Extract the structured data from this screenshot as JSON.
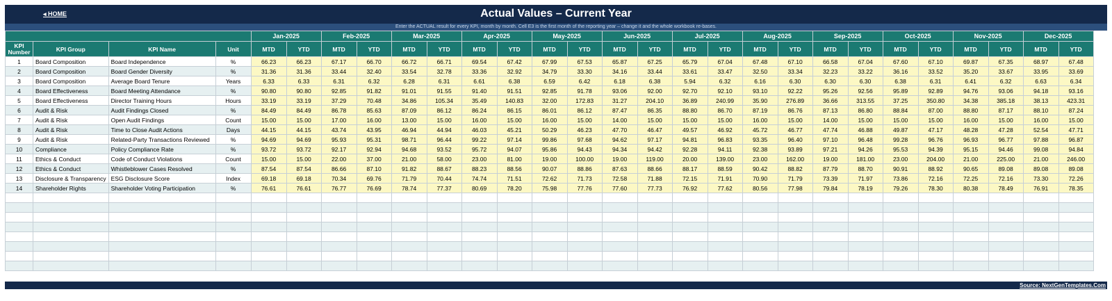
{
  "header": {
    "home_label": "◂ HOME",
    "title": "Actual Values  –  Current Year",
    "subtitle": "Enter the ACTUAL result for every KPI, month by month. Cell E3 is the first month of the reporting year – change it and the whole workbook re-bases."
  },
  "columns": {
    "kpi_number": "KPI Number",
    "kpi_group": "KPI Group",
    "kpi_name": "KPI Name",
    "unit": "Unit",
    "mtd": "MTD",
    "ytd": "YTD"
  },
  "months": [
    "Jan-2025",
    "Feb-2025",
    "Mar-2025",
    "Apr-2025",
    "May-2025",
    "Jun-2025",
    "Jul-2025",
    "Aug-2025",
    "Sep-2025",
    "Oct-2025",
    "Nov-2025",
    "Dec-2025"
  ],
  "rows": [
    {
      "num": "1",
      "group": "Board Composition",
      "name": "Board Independence",
      "unit": "%",
      "values": [
        "66.23",
        "66.23",
        "67.17",
        "66.70",
        "66.72",
        "66.71",
        "69.54",
        "67.42",
        "67.99",
        "67.53",
        "65.87",
        "67.25",
        "65.79",
        "67.04",
        "67.48",
        "67.10",
        "66.58",
        "67.04",
        "67.60",
        "67.10",
        "69.87",
        "67.35",
        "68.97",
        "67.48"
      ]
    },
    {
      "num": "2",
      "group": "Board Composition",
      "name": "Board Gender Diversity",
      "unit": "%",
      "values": [
        "31.36",
        "31.36",
        "33.44",
        "32.40",
        "33.54",
        "32.78",
        "33.36",
        "32.92",
        "34.79",
        "33.30",
        "34.16",
        "33.44",
        "33.61",
        "33.47",
        "32.50",
        "33.34",
        "32.23",
        "33.22",
        "36.16",
        "33.52",
        "35.20",
        "33.67",
        "33.95",
        "33.69"
      ]
    },
    {
      "num": "3",
      "group": "Board Composition",
      "name": "Average Board Tenure",
      "unit": "Years",
      "values": [
        "6.33",
        "6.33",
        "6.31",
        "6.32",
        "6.28",
        "6.31",
        "6.61",
        "6.38",
        "6.59",
        "6.42",
        "6.18",
        "6.38",
        "5.94",
        "6.32",
        "6.16",
        "6.30",
        "6.30",
        "6.30",
        "6.38",
        "6.31",
        "6.41",
        "6.32",
        "6.63",
        "6.34"
      ]
    },
    {
      "num": "4",
      "group": "Board Effectiveness",
      "name": "Board Meeting Attendance",
      "unit": "%",
      "values": [
        "90.80",
        "90.80",
        "92.85",
        "91.82",
        "91.01",
        "91.55",
        "91.40",
        "91.51",
        "92.85",
        "91.78",
        "93.06",
        "92.00",
        "92.70",
        "92.10",
        "93.10",
        "92.22",
        "95.26",
        "92.56",
        "95.89",
        "92.89",
        "94.76",
        "93.06",
        "94.18",
        "93.16"
      ]
    },
    {
      "num": "5",
      "group": "Board Effectiveness",
      "name": "Director Training Hours",
      "unit": "Hours",
      "values": [
        "33.19",
        "33.19",
        "37.29",
        "70.48",
        "34.86",
        "105.34",
        "35.49",
        "140.83",
        "32.00",
        "172.83",
        "31.27",
        "204.10",
        "36.89",
        "240.99",
        "35.90",
        "276.89",
        "36.66",
        "313.55",
        "37.25",
        "350.80",
        "34.38",
        "385.18",
        "38.13",
        "423.31"
      ]
    },
    {
      "num": "6",
      "group": "Audit & Risk",
      "name": "Audit Findings Closed",
      "unit": "%",
      "values": [
        "84.49",
        "84.49",
        "86.78",
        "85.63",
        "87.09",
        "86.12",
        "86.24",
        "86.15",
        "86.01",
        "86.12",
        "87.47",
        "86.35",
        "88.80",
        "86.70",
        "87.19",
        "86.76",
        "87.13",
        "86.80",
        "88.84",
        "87.00",
        "88.80",
        "87.17",
        "88.10",
        "87.24"
      ]
    },
    {
      "num": "7",
      "group": "Audit & Risk",
      "name": "Open Audit Findings",
      "unit": "Count",
      "values": [
        "15.00",
        "15.00",
        "17.00",
        "16.00",
        "13.00",
        "15.00",
        "16.00",
        "15.00",
        "16.00",
        "15.00",
        "14.00",
        "15.00",
        "15.00",
        "15.00",
        "16.00",
        "15.00",
        "14.00",
        "15.00",
        "15.00",
        "15.00",
        "16.00",
        "15.00",
        "16.00",
        "15.00"
      ]
    },
    {
      "num": "8",
      "group": "Audit & Risk",
      "name": "Time to Close Audit Actions",
      "unit": "Days",
      "values": [
        "44.15",
        "44.15",
        "43.74",
        "43.95",
        "46.94",
        "44.94",
        "46.03",
        "45.21",
        "50.29",
        "46.23",
        "47.70",
        "46.47",
        "49.57",
        "46.92",
        "45.72",
        "46.77",
        "47.74",
        "46.88",
        "49.87",
        "47.17",
        "48.28",
        "47.28",
        "52.54",
        "47.71"
      ]
    },
    {
      "num": "9",
      "group": "Audit & Risk",
      "name": "Related-Party Transactions Reviewed",
      "unit": "%",
      "values": [
        "94.69",
        "94.69",
        "95.93",
        "95.31",
        "98.71",
        "96.44",
        "99.22",
        "97.14",
        "99.86",
        "97.68",
        "94.62",
        "97.17",
        "94.81",
        "96.83",
        "93.35",
        "96.40",
        "97.10",
        "96.48",
        "99.28",
        "96.76",
        "96.93",
        "96.77",
        "97.88",
        "96.87"
      ]
    },
    {
      "num": "10",
      "group": "Compliance",
      "name": "Policy Compliance Rate",
      "unit": "%",
      "values": [
        "93.72",
        "93.72",
        "92.17",
        "92.94",
        "94.68",
        "93.52",
        "95.72",
        "94.07",
        "95.86",
        "94.43",
        "94.34",
        "94.42",
        "92.28",
        "94.11",
        "92.38",
        "93.89",
        "97.21",
        "94.26",
        "95.53",
        "94.39",
        "95.15",
        "94.46",
        "99.08",
        "94.84"
      ]
    },
    {
      "num": "11",
      "group": "Ethics & Conduct",
      "name": "Code of Conduct Violations",
      "unit": "Count",
      "values": [
        "15.00",
        "15.00",
        "22.00",
        "37.00",
        "21.00",
        "58.00",
        "23.00",
        "81.00",
        "19.00",
        "100.00",
        "19.00",
        "119.00",
        "20.00",
        "139.00",
        "23.00",
        "162.00",
        "19.00",
        "181.00",
        "23.00",
        "204.00",
        "21.00",
        "225.00",
        "21.00",
        "246.00"
      ]
    },
    {
      "num": "12",
      "group": "Ethics & Conduct",
      "name": "Whistleblower Cases Resolved",
      "unit": "%",
      "values": [
        "87.54",
        "87.54",
        "86.66",
        "87.10",
        "91.82",
        "88.67",
        "88.23",
        "88.56",
        "90.07",
        "88.86",
        "87.63",
        "88.66",
        "88.17",
        "88.59",
        "90.42",
        "88.82",
        "87.79",
        "88.70",
        "90.91",
        "88.92",
        "90.65",
        "89.08",
        "89.08",
        "89.08"
      ]
    },
    {
      "num": "13",
      "group": "Disclosure & Transparency",
      "name": "ESG Disclosure Score",
      "unit": "Index",
      "values": [
        "69.18",
        "69.18",
        "70.34",
        "69.76",
        "71.79",
        "70.44",
        "74.74",
        "71.51",
        "72.62",
        "71.73",
        "72.58",
        "71.88",
        "72.15",
        "71.91",
        "70.90",
        "71.79",
        "73.39",
        "71.97",
        "73.86",
        "72.16",
        "72.25",
        "72.16",
        "73.30",
        "72.26"
      ]
    },
    {
      "num": "14",
      "group": "Shareholder Rights",
      "name": "Shareholder Voting Participation",
      "unit": "%",
      "values": [
        "76.61",
        "76.61",
        "76.77",
        "76.69",
        "78.74",
        "77.37",
        "80.69",
        "78.20",
        "75.98",
        "77.76",
        "77.60",
        "77.73",
        "76.92",
        "77.62",
        "80.56",
        "77.98",
        "79.84",
        "78.19",
        "79.26",
        "78.30",
        "80.38",
        "78.49",
        "76.91",
        "78.35"
      ]
    }
  ],
  "footer": {
    "source_label": "Source: NextGenTemplates.Com"
  },
  "colors": {
    "navy": "#14294a",
    "teal_header": "#1b7a72",
    "input_yellow": "#fcf8c4",
    "band": "#e6f0f1"
  }
}
